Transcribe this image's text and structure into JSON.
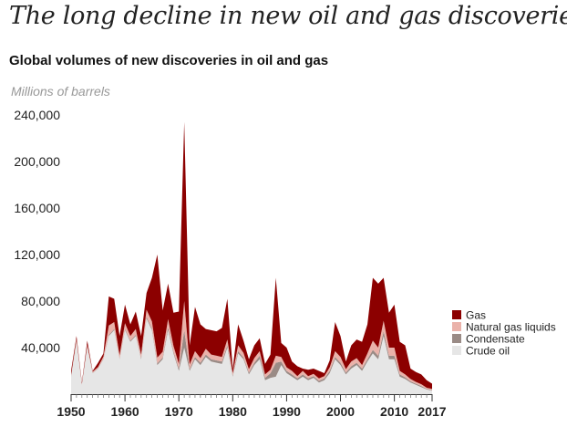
{
  "header": {
    "title": "The long decline in new oil and gas discoveries",
    "subtitle": "Global volumes of new discoveries in oil and gas",
    "units_label": "Millions of barrels"
  },
  "chart_data": {
    "type": "area",
    "stacked": true,
    "x": [
      1950,
      1951,
      1952,
      1953,
      1954,
      1955,
      1956,
      1957,
      1958,
      1959,
      1960,
      1961,
      1962,
      1963,
      1964,
      1965,
      1966,
      1967,
      1968,
      1969,
      1970,
      1971,
      1972,
      1973,
      1974,
      1975,
      1976,
      1977,
      1978,
      1979,
      1980,
      1981,
      1982,
      1983,
      1984,
      1985,
      1986,
      1987,
      1988,
      1989,
      1990,
      1991,
      1992,
      1993,
      1994,
      1995,
      1996,
      1997,
      1998,
      1999,
      2000,
      2001,
      2002,
      2003,
      2004,
      2005,
      2006,
      2007,
      2008,
      2009,
      2010,
      2011,
      2012,
      2013,
      2014,
      2015,
      2016,
      2017
    ],
    "xticks": [
      "1950",
      "1960",
      "1970",
      "1980",
      "1990",
      "2000",
      "2010",
      "2017"
    ],
    "xlim": [
      1950,
      2017
    ],
    "ylim": [
      0,
      240000
    ],
    "yticks": [
      40000,
      80000,
      120000,
      160000,
      200000,
      240000
    ],
    "ytick_labels": [
      "40,000",
      "80,000",
      "120,000",
      "160,000",
      "200,000",
      "240,000"
    ],
    "legend_position": "right",
    "grid": false,
    "series": [
      {
        "name": "Crude oil",
        "color": "#e6e6e6",
        "values": [
          15000,
          45000,
          8000,
          40000,
          18000,
          22000,
          30000,
          50000,
          55000,
          30000,
          55000,
          45000,
          50000,
          30000,
          65000,
          55000,
          25000,
          30000,
          55000,
          35000,
          20000,
          40000,
          20000,
          30000,
          25000,
          32000,
          28000,
          27000,
          26000,
          40000,
          15000,
          35000,
          30000,
          17000,
          25000,
          30000,
          12000,
          14000,
          15000,
          25000,
          18000,
          15000,
          12000,
          15000,
          12000,
          14000,
          10000,
          12000,
          18000,
          30000,
          25000,
          17000,
          22000,
          25000,
          20000,
          28000,
          35000,
          30000,
          50000,
          30000,
          30000,
          15000,
          13000,
          10000,
          8000,
          6000,
          4000,
          3000
        ]
      },
      {
        "name": "Condensate",
        "color": "#9a8b86",
        "values": [
          500,
          500,
          300,
          500,
          300,
          300,
          400,
          1000,
          1000,
          500,
          1000,
          1000,
          1000,
          1000,
          1500,
          1500,
          1500,
          1500,
          2500,
          1500,
          2000,
          15000,
          1500,
          2000,
          2000,
          2000,
          2000,
          2000,
          2000,
          2000,
          1000,
          2000,
          1500,
          1500,
          2000,
          3000,
          2000,
          4000,
          12000,
          3000,
          2000,
          2000,
          1500,
          2000,
          1500,
          1500,
          1500,
          1500,
          2000,
          2000,
          2000,
          1500,
          2000,
          2000,
          2000,
          2000,
          3000,
          3000,
          4000,
          3000,
          3000,
          2000,
          1500,
          1000,
          1000,
          1000,
          500,
          500
        ]
      },
      {
        "name": "Natural gas liquids",
        "color": "#eab2aa",
        "values": [
          1000,
          2000,
          500,
          2000,
          1000,
          1000,
          2000,
          8000,
          6000,
          3000,
          5000,
          4000,
          5000,
          3000,
          6000,
          6000,
          5000,
          5000,
          7000,
          5000,
          4000,
          25000,
          4000,
          5000,
          4000,
          5000,
          4000,
          4000,
          4000,
          5000,
          2000,
          5000,
          4000,
          3000,
          4000,
          4000,
          3000,
          3000,
          6000,
          4000,
          3000,
          3000,
          2000,
          3000,
          2000,
          2000,
          2000,
          2000,
          3000,
          5000,
          5000,
          3000,
          4000,
          4000,
          3000,
          5000,
          8000,
          7000,
          9000,
          7000,
          7000,
          3000,
          2500,
          2000,
          1500,
          1500,
          1000,
          1000
        ]
      },
      {
        "name": "Gas",
        "color": "#8c0000",
        "values": [
          3500,
          2500,
          1200,
          3500,
          700,
          3700,
          2600,
          25000,
          20000,
          16500,
          16000,
          10000,
          15000,
          16000,
          14500,
          37500,
          88500,
          35500,
          30500,
          28500,
          45000,
          154000,
          16500,
          38000,
          29000,
          17000,
          21000,
          21000,
          25000,
          35000,
          4000,
          18000,
          10500,
          8500,
          11000,
          11000,
          9000,
          13000,
          67000,
          12000,
          17000,
          8000,
          8500,
          2000,
          5500,
          4500,
          6500,
          2500,
          6000,
          25000,
          18000,
          6500,
          14000,
          16000,
          20000,
          25000,
          54000,
          55000,
          37000,
          30000,
          37000,
          25000,
          25000,
          9000,
          8500,
          8500,
          6500,
          4500
        ]
      }
    ]
  }
}
